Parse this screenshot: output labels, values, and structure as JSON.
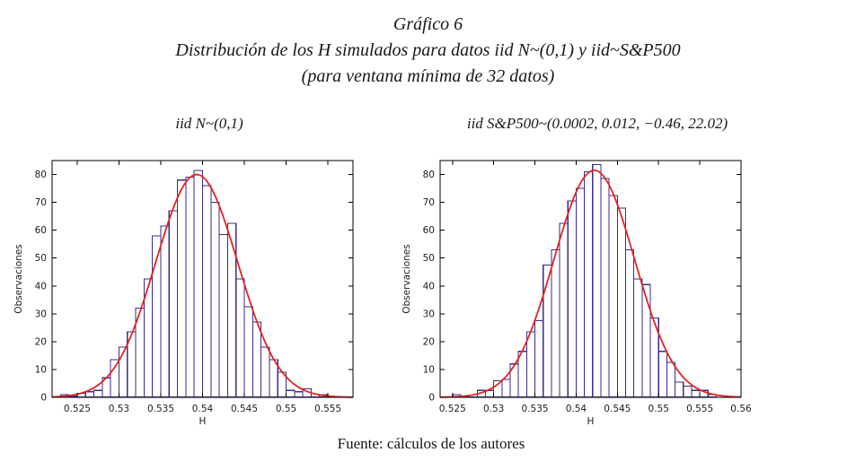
{
  "title": {
    "line1": "Gráfico 6",
    "line2": "Distribución de los H simulados para datos iid N~(0,1)  y iid~S&P500",
    "line3": "(para ventana mínima de 32 datos)"
  },
  "source_note": "Fuente: cálculos de los autores",
  "colors": {
    "bar_edge": "#3d2a8e",
    "bar_fill": "#ffffff",
    "fit_curve": "#e3241f",
    "axis": "#000000",
    "tick_text": "#1c1c1c"
  },
  "chart_data": [
    {
      "type": "bar",
      "title": "iid N~(0,1)",
      "xlabel": "H",
      "ylabel": "Observaciones",
      "grid": false,
      "legend": "none",
      "xlim": [
        0.522,
        0.558
      ],
      "ylim": [
        0,
        85
      ],
      "xtick_labels": [
        "0.525",
        "0.53",
        "0.535",
        "0.54",
        "0.545",
        "0.55",
        "0.555"
      ],
      "ytick_labels": [
        "0",
        "10",
        "20",
        "30",
        "40",
        "50",
        "60",
        "70",
        "80"
      ],
      "bin_width": 0.001,
      "bin_centers": [
        0.5235,
        0.5245,
        0.5255,
        0.5265,
        0.5275,
        0.5285,
        0.5295,
        0.5305,
        0.5315,
        0.5325,
        0.5335,
        0.5345,
        0.5355,
        0.5365,
        0.5375,
        0.5385,
        0.5395,
        0.5405,
        0.5415,
        0.5425,
        0.5435,
        0.5445,
        0.5455,
        0.5465,
        0.5475,
        0.5485,
        0.5495,
        0.5505,
        0.5515,
        0.5525,
        0.5535,
        0.5545
      ],
      "values": [
        1,
        0.5,
        1.5,
        2,
        2.5,
        7,
        13.5,
        18,
        23.5,
        32,
        42.5,
        58,
        61.5,
        67,
        78,
        79,
        81.5,
        76,
        70,
        58.5,
        62.5,
        42.5,
        32.5,
        27,
        18,
        13.5,
        9,
        2.5,
        2,
        3,
        0,
        1
      ],
      "fit": {
        "type": "normal",
        "mu": 0.5393,
        "sigma": 0.0049,
        "peak": 80
      }
    },
    {
      "type": "bar",
      "title": "iid S&P500~(0.0002, 0.012, −0.46, 22.02)",
      "xlabel": "H",
      "ylabel": "Observaciones",
      "grid": false,
      "legend": "none",
      "xlim": [
        0.5235,
        0.56
      ],
      "ylim": [
        0,
        85
      ],
      "xtick_labels": [
        "0.525",
        "0.53",
        "0.535",
        "0.54",
        "0.545",
        "0.55",
        "0.555",
        "0.56"
      ],
      "ytick_labels": [
        "0",
        "10",
        "20",
        "30",
        "40",
        "50",
        "60",
        "70",
        "80"
      ],
      "bin_width": 0.001,
      "bin_centers": [
        0.5255,
        0.5265,
        0.5275,
        0.5285,
        0.5295,
        0.5305,
        0.5315,
        0.5325,
        0.5335,
        0.5345,
        0.5355,
        0.5365,
        0.5375,
        0.5385,
        0.5395,
        0.5405,
        0.5415,
        0.5425,
        0.5435,
        0.5445,
        0.5455,
        0.5465,
        0.5475,
        0.5485,
        0.5495,
        0.5505,
        0.5515,
        0.5525,
        0.5535,
        0.5545,
        0.5555,
        0.5565
      ],
      "values": [
        1,
        0,
        0,
        2.5,
        2.5,
        6,
        6.5,
        12,
        16.5,
        23.5,
        27.5,
        47.5,
        53,
        62.5,
        70.5,
        75,
        81,
        83.5,
        78.5,
        72.5,
        68,
        53,
        42.5,
        40.5,
        28.5,
        16.5,
        12.5,
        5.5,
        4,
        2.5,
        2.5,
        1
      ],
      "fit": {
        "type": "normal",
        "mu": 0.5422,
        "sigma": 0.0049,
        "peak": 81.5
      }
    }
  ]
}
